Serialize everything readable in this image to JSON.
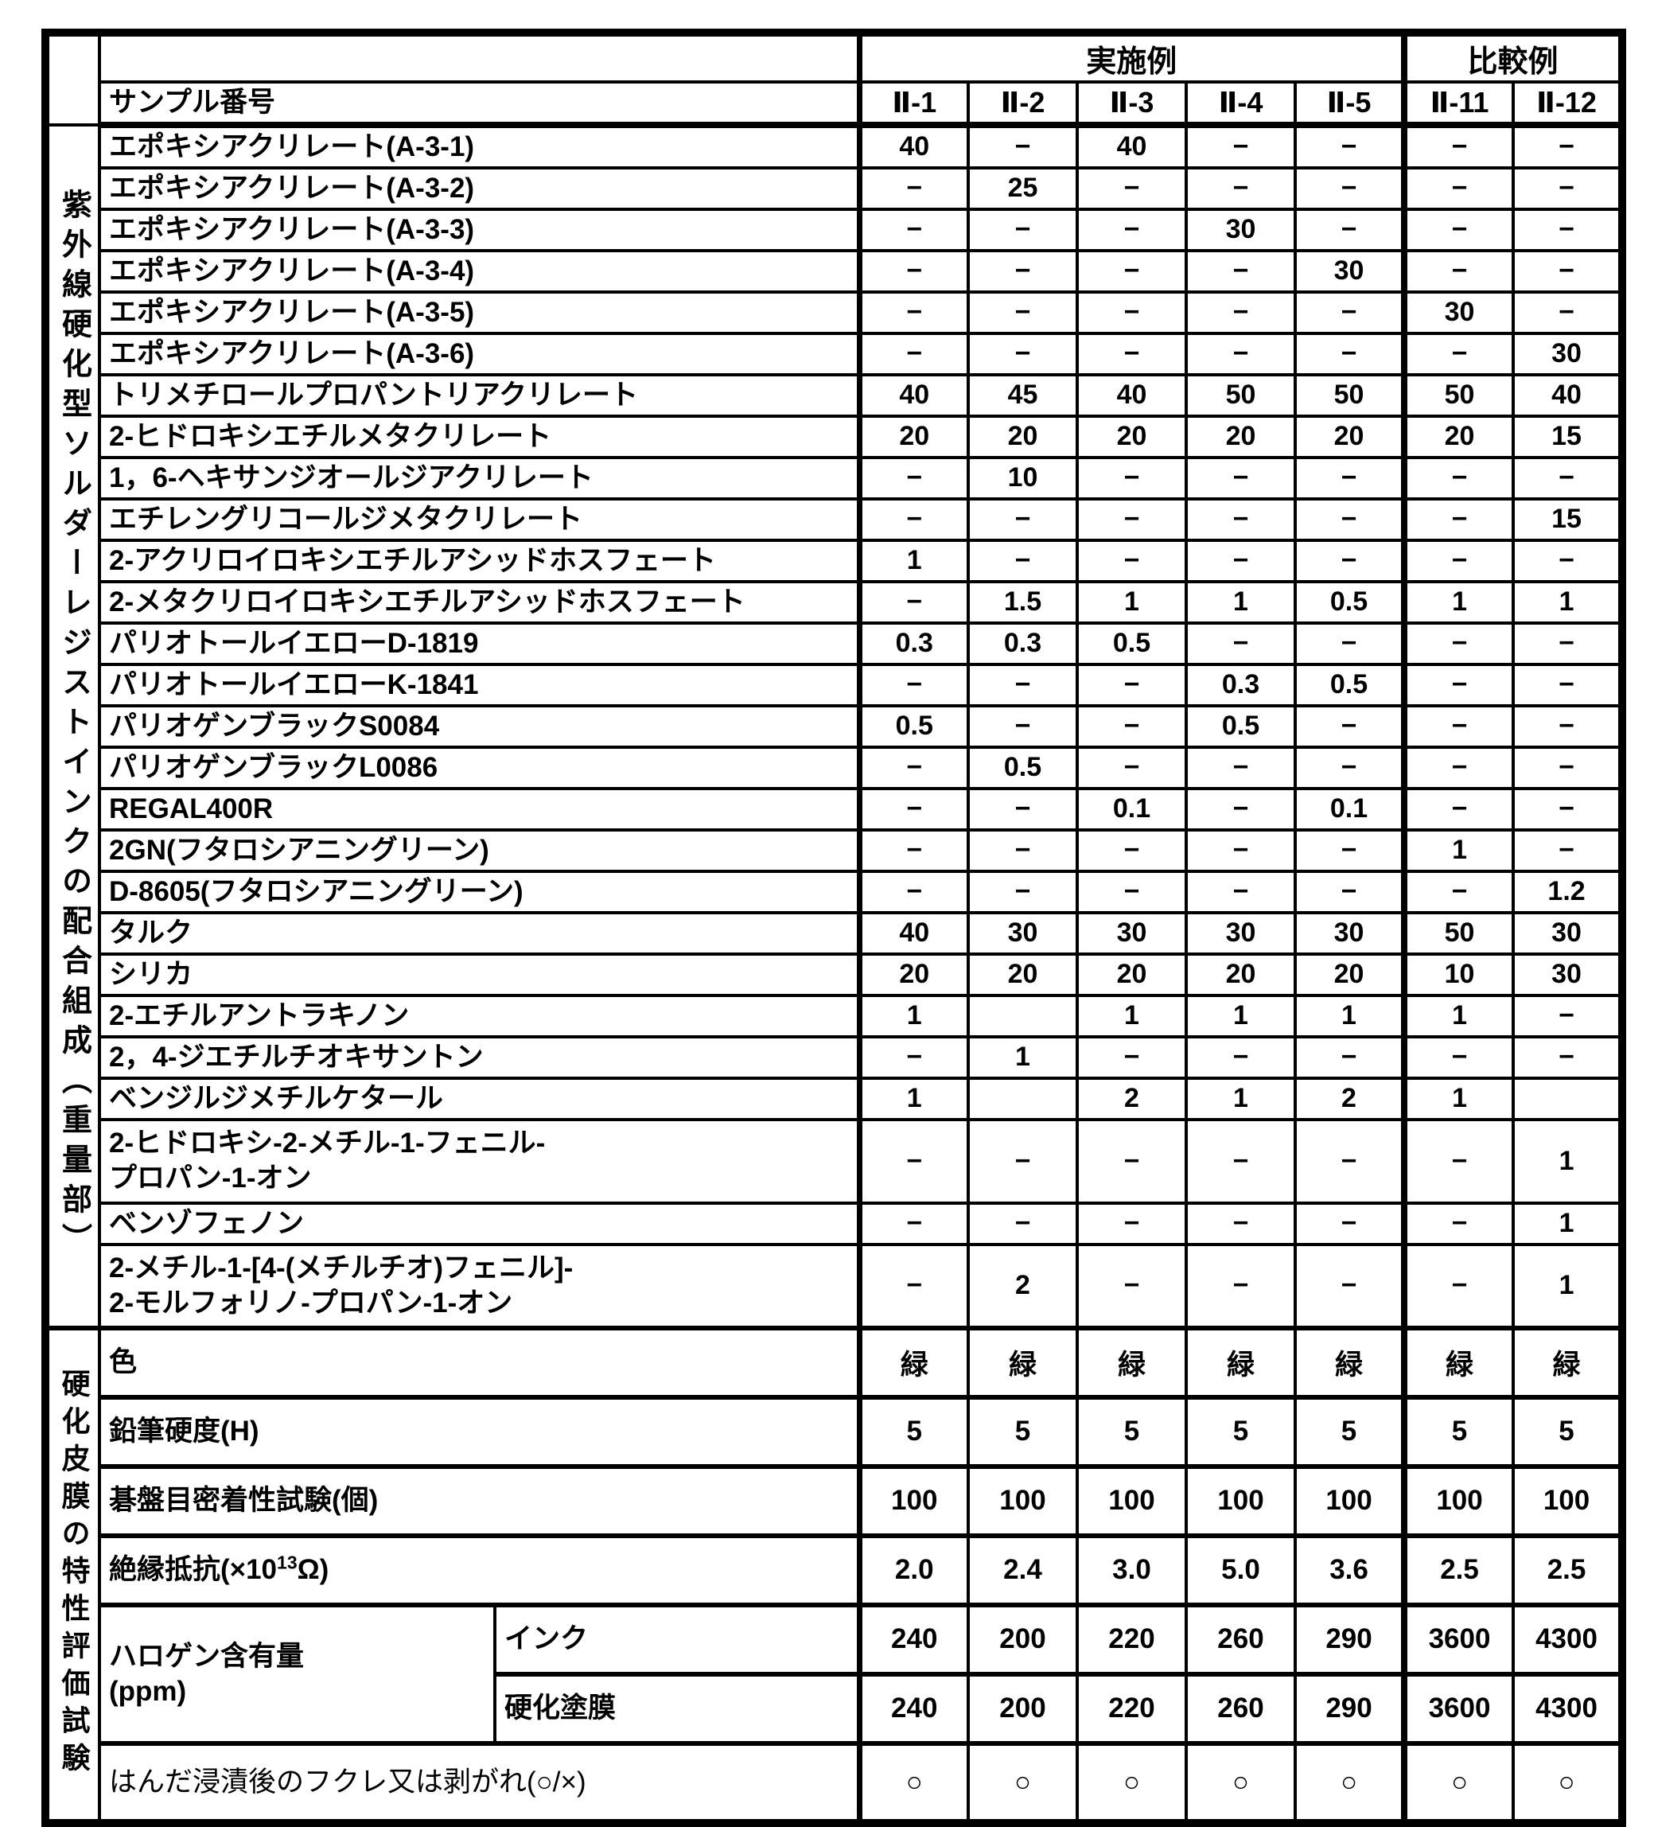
{
  "header": {
    "examples_group": "実施例",
    "comparative_group": "比較例",
    "sample_number_label": "サンプル番号",
    "sample_ids": [
      "Ⅱ-1",
      "Ⅱ-2",
      "Ⅱ-3",
      "Ⅱ-4",
      "Ⅱ-5",
      "Ⅱ-11",
      "Ⅱ-12"
    ]
  },
  "composition": {
    "side_label": "紫外線硬化型ソルダーレジストインクの配合組成（重量部）",
    "rows": [
      {
        "label": "エポキシアクリレート(A-3-1)",
        "values": [
          "40",
          "−",
          "40",
          "−",
          "−",
          "−",
          "−"
        ]
      },
      {
        "label": "エポキシアクリレート(A-3-2)",
        "values": [
          "−",
          "25",
          "−",
          "−",
          "−",
          "−",
          "−"
        ]
      },
      {
        "label": "エポキシアクリレート(A-3-3)",
        "values": [
          "−",
          "−",
          "−",
          "30",
          "−",
          "−",
          "−"
        ]
      },
      {
        "label": "エポキシアクリレート(A-3-4)",
        "values": [
          "−",
          "−",
          "−",
          "−",
          "30",
          "−",
          "−"
        ]
      },
      {
        "label": "エポキシアクリレート(A-3-5)",
        "values": [
          "−",
          "−",
          "−",
          "−",
          "−",
          "30",
          "−"
        ]
      },
      {
        "label": "エポキシアクリレート(A-3-6)",
        "values": [
          "−",
          "−",
          "−",
          "−",
          "−",
          "−",
          "30"
        ]
      },
      {
        "label": "トリメチロールプロパントリアクリレート",
        "values": [
          "40",
          "45",
          "40",
          "50",
          "50",
          "50",
          "40"
        ]
      },
      {
        "label": "2-ヒドロキシエチルメタクリレート",
        "values": [
          "20",
          "20",
          "20",
          "20",
          "20",
          "20",
          "15"
        ]
      },
      {
        "label": "1，6-ヘキサンジオールジアクリレート",
        "values": [
          "−",
          "10",
          "−",
          "−",
          "−",
          "−",
          "−"
        ]
      },
      {
        "label": "エチレングリコールジメタクリレート",
        "values": [
          "−",
          "−",
          "−",
          "−",
          "−",
          "−",
          "15"
        ]
      },
      {
        "label": "2-アクリロイロキシエチルアシッドホスフェート",
        "values": [
          "1",
          "−",
          "−",
          "−",
          "−",
          "−",
          "−"
        ]
      },
      {
        "label": "2-メタクリロイロキシエチルアシッドホスフェート",
        "values": [
          "−",
          "1.5",
          "1",
          "1",
          "0.5",
          "1",
          "1"
        ]
      },
      {
        "label": "パリオトールイエローD-1819",
        "values": [
          "0.3",
          "0.3",
          "0.5",
          "−",
          "−",
          "−",
          "−"
        ]
      },
      {
        "label": "パリオトールイエローK-1841",
        "values": [
          "−",
          "−",
          "−",
          "0.3",
          "0.5",
          "−",
          "−"
        ]
      },
      {
        "label": "パリオゲンブラックS0084",
        "values": [
          "0.5",
          "−",
          "−",
          "0.5",
          "−",
          "−",
          "−"
        ]
      },
      {
        "label": "パリオゲンブラックL0086",
        "values": [
          "−",
          "0.5",
          "−",
          "−",
          "−",
          "−",
          "−"
        ]
      },
      {
        "label": "REGAL400R",
        "values": [
          "−",
          "−",
          "0.1",
          "−",
          "0.1",
          "−",
          "−"
        ]
      },
      {
        "label": "2GN(フタロシアニングリーン)",
        "values": [
          "−",
          "−",
          "−",
          "−",
          "−",
          "1",
          "−"
        ]
      },
      {
        "label": "D-8605(フタロシアニングリーン)",
        "values": [
          "−",
          "−",
          "−",
          "−",
          "−",
          "−",
          "1.2"
        ]
      },
      {
        "label": "タルク",
        "values": [
          "40",
          "30",
          "30",
          "30",
          "30",
          "50",
          "30"
        ]
      },
      {
        "label": "シリカ",
        "values": [
          "20",
          "20",
          "20",
          "20",
          "20",
          "10",
          "30"
        ]
      },
      {
        "label": "2-エチルアントラキノン",
        "values": [
          "1",
          "",
          "1",
          "1",
          "1",
          "1",
          "−"
        ]
      },
      {
        "label": "2，4-ジエチルチオキサントン",
        "values": [
          "−",
          "1",
          "−",
          "−",
          "−",
          "−",
          "−"
        ]
      },
      {
        "label": "ベンジルジメチルケタール",
        "values": [
          "1",
          "",
          "2",
          "1",
          "2",
          "1",
          ""
        ]
      },
      {
        "label": "2-ヒドロキシ-2-メチル-1-フェニル-\nプロパン-1-オン",
        "tall": true,
        "values": [
          "−",
          "−",
          "−",
          "−",
          "−",
          "−",
          "1"
        ]
      },
      {
        "label": "ベンゾフェノン",
        "values": [
          "−",
          "−",
          "−",
          "−",
          "−",
          "−",
          "1"
        ]
      },
      {
        "label": "2-メチル-1-[4-(メチルチオ)フェニル]-\n2-モルフォリノ-プロパン-1-オン",
        "tall": true,
        "values": [
          "−",
          "2",
          "−",
          "−",
          "−",
          "−",
          "1"
        ]
      }
    ]
  },
  "evaluation": {
    "side_label": "硬化皮膜の特性評価試験",
    "color_row": {
      "label": "色",
      "values": [
        "緑",
        "緑",
        "緑",
        "緑",
        "緑",
        "緑",
        "緑"
      ]
    },
    "pencil_row": {
      "label": "鉛筆硬度(H)",
      "values": [
        "5",
        "5",
        "5",
        "5",
        "5",
        "5",
        "5"
      ]
    },
    "crosscut_row": {
      "label": "碁盤目密着性試験(個)",
      "values": [
        "100",
        "100",
        "100",
        "100",
        "100",
        "100",
        "100"
      ]
    },
    "insulation_row": {
      "label_prefix": "絶縁抵抗(×10",
      "label_sup": "13",
      "label_suffix": "Ω)",
      "values": [
        "2.0",
        "2.4",
        "3.0",
        "5.0",
        "3.6",
        "2.5",
        "2.5"
      ]
    },
    "halogen": {
      "label": "ハロゲン含有量\n(ppm)",
      "ink_row": {
        "label": "インク",
        "values": [
          "240",
          "200",
          "220",
          "260",
          "290",
          "3600",
          "4300"
        ]
      },
      "cured_row": {
        "label": "硬化塗膜",
        "values": [
          "240",
          "200",
          "220",
          "260",
          "290",
          "3600",
          "4300"
        ]
      }
    },
    "solder_row": {
      "label": "はんだ浸漬後のフクレ又は剥がれ(○/×)",
      "values": [
        "○",
        "○",
        "○",
        "○",
        "○",
        "○",
        "○"
      ]
    }
  }
}
